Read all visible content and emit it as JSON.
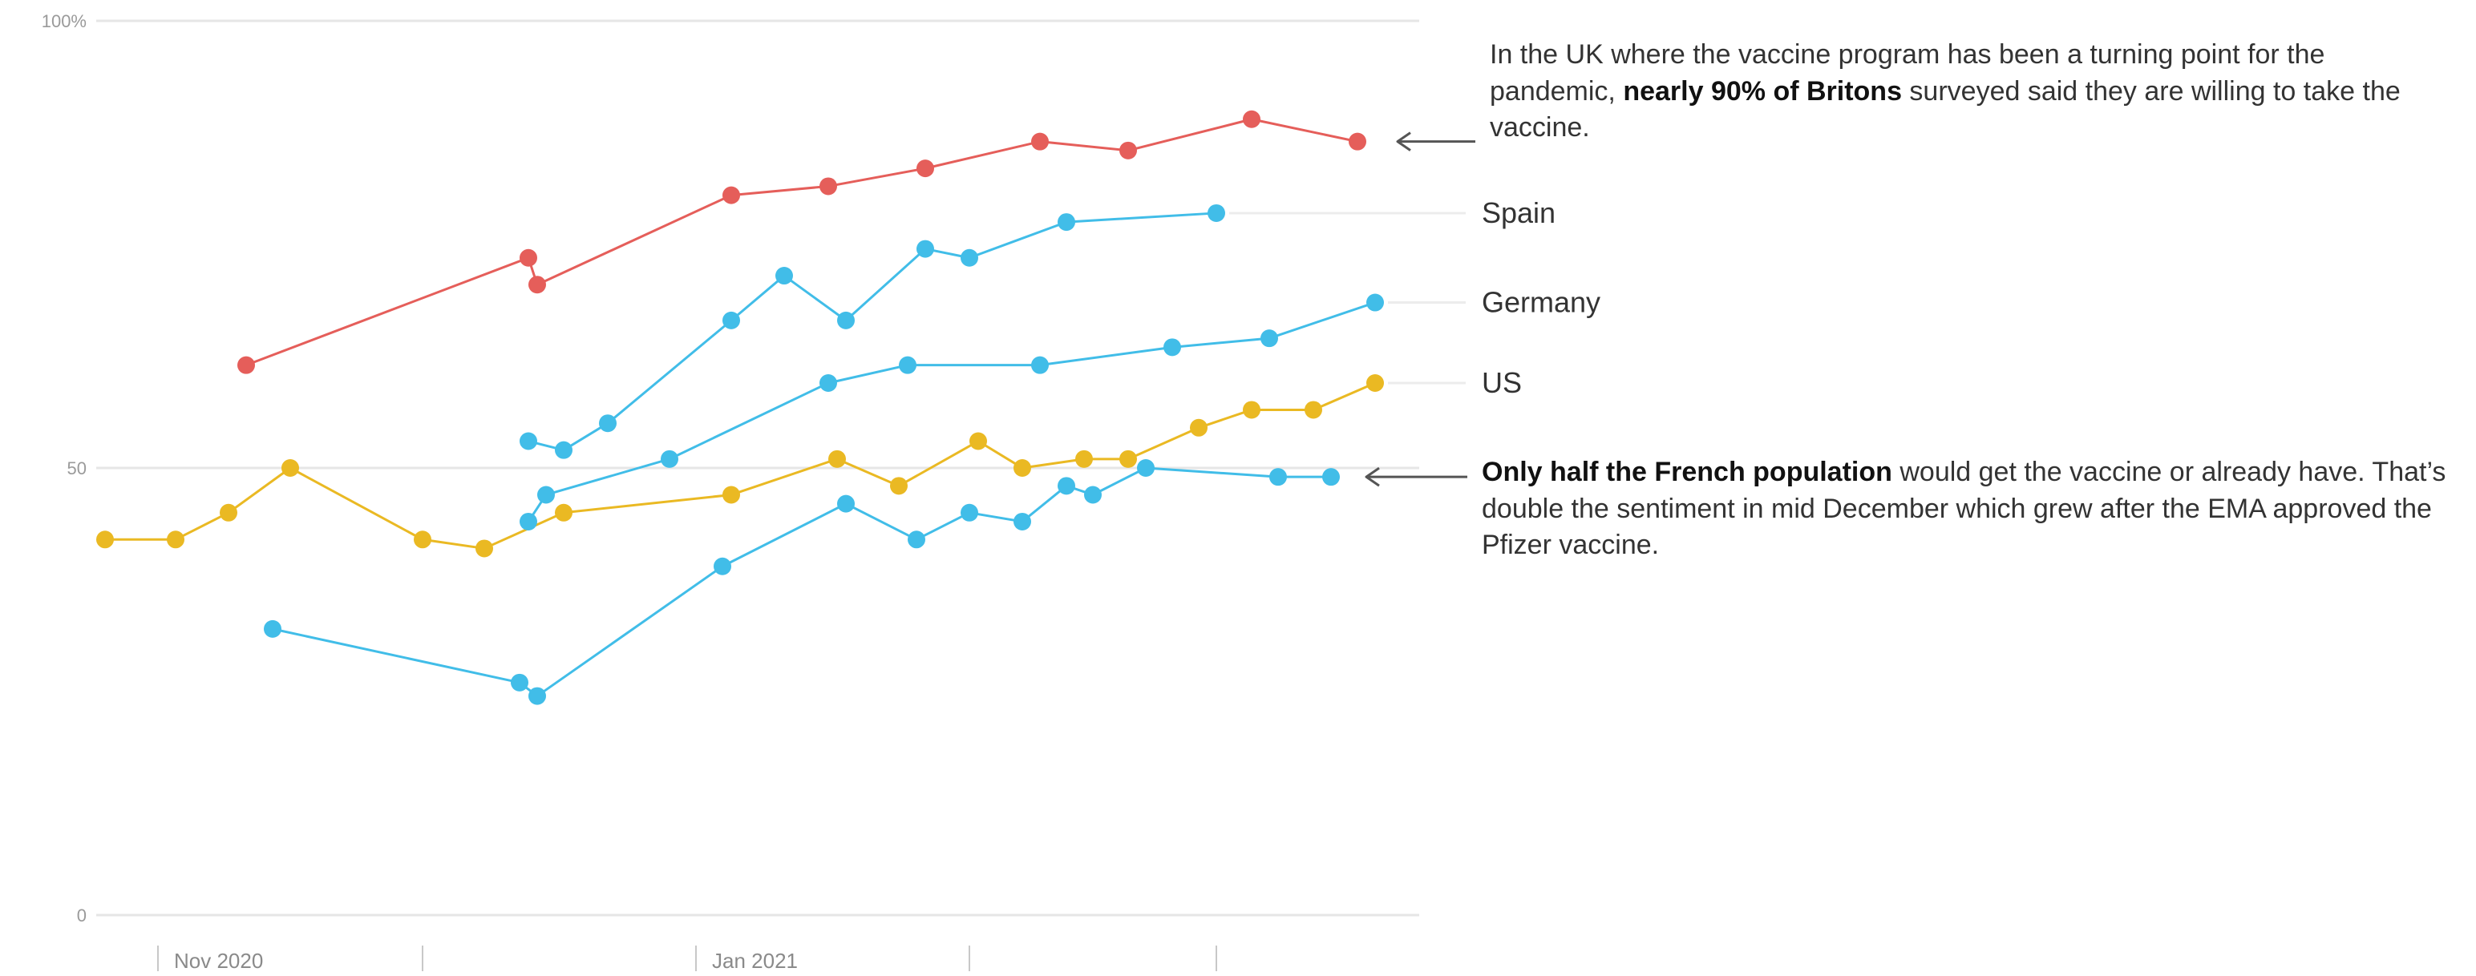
{
  "colors": {
    "uk": "#e55e5a",
    "spain": "#41bde8",
    "germany": "#41bde8",
    "france": "#41bde8",
    "us": "#eab923",
    "grid": "#e6e6e6",
    "axis_text": "#9a9a9a",
    "arrow": "#555555"
  },
  "annotations": {
    "uk": {
      "pre": "In the UK where the vaccine program has been a turning point for the pandemic, ",
      "bold": "nearly 90% of Britons",
      "post": " surveyed said they are willing to take the vaccine."
    },
    "france": {
      "bold": "Only half the French population",
      "post": " would get the vaccine or already have. That’s double the sentiment in mid December which grew after the EMA approved the Pfizer vaccine."
    }
  },
  "chart_data": {
    "type": "line",
    "title": "",
    "xlabel": "",
    "ylabel": "",
    "ylim": [
      0,
      100
    ],
    "y_ticks": [
      {
        "value": 100,
        "label": "100%"
      },
      {
        "value": 50,
        "label": "50"
      },
      {
        "value": 0,
        "label": "0"
      }
    ],
    "x_tick_labels": [
      {
        "date": "2020-11-01",
        "label": "Nov 2020"
      },
      {
        "date": "2021-01-01",
        "label": "Jan 2021"
      }
    ],
    "x_tick_dates": [
      "2020-11-01",
      "2020-12-01",
      "2021-01-01",
      "2021-02-01",
      "2021-03-01"
    ],
    "xlim": [
      "2020-10-25",
      "2021-03-24"
    ],
    "grid": true,
    "series": [
      {
        "key": "uk",
        "name": "",
        "dates": [
          "2020-11-11",
          "2020-12-13",
          "2020-12-14",
          "2021-01-05",
          "2021-01-16",
          "2021-01-27",
          "2021-02-09",
          "2021-02-19",
          "2021-03-05",
          "2021-03-17"
        ],
        "values": [
          61.5,
          73.5,
          70.5,
          80.5,
          81.5,
          83.5,
          86.5,
          85.5,
          89,
          86.5
        ]
      },
      {
        "key": "spain",
        "name": "Spain",
        "dates": [
          "2020-12-13",
          "2020-12-17",
          "2020-12-22",
          "2021-01-05",
          "2021-01-11",
          "2021-01-18",
          "2021-01-27",
          "2021-02-01",
          "2021-02-12",
          "2021-02-29x"
        ],
        "values": [
          53,
          52,
          55,
          66.5,
          71.5,
          66.5,
          74.5,
          73.5,
          77.5,
          78.5
        ]
      },
      {
        "key": "germany",
        "name": "Germany",
        "dates": [
          "2020-12-13",
          "2020-12-15",
          "2020-12-29",
          "2021-01-16",
          "2021-01-25",
          "2021-02-09",
          "2021-02-24",
          "2021-03-07",
          "2021-03-19"
        ],
        "values": [
          44,
          47,
          51,
          59.5,
          61.5,
          61.5,
          63.5,
          64.5,
          68.5
        ]
      },
      {
        "key": "us",
        "name": "US",
        "dates": [
          "2020-10-26",
          "2020-11-03",
          "2020-11-09",
          "2020-11-16",
          "2020-12-01",
          "2020-12-08",
          "2020-12-17",
          "2021-01-05",
          "2021-01-17",
          "2021-01-24",
          "2021-02-02",
          "2021-02-07",
          "2021-02-14",
          "2021-02-19",
          "2021-02-27",
          "2021-03-05",
          "2021-03-12",
          "2021-03-19"
        ],
        "values": [
          42,
          42,
          45,
          50,
          42,
          41,
          45,
          47,
          51,
          48,
          53,
          50,
          51,
          51,
          54.5,
          56.5,
          56.5,
          59.5
        ]
      },
      {
        "key": "france",
        "name": "",
        "dates": [
          "2020-11-14",
          "2020-12-12",
          "2020-12-14",
          "2021-01-04",
          "2021-01-18",
          "2021-01-26",
          "2021-02-01",
          "2021-02-07",
          "2021-02-12",
          "2021-02-15",
          "2021-02-21",
          "2021-03-08",
          "2021-03-14"
        ],
        "values": [
          32,
          26,
          24.5,
          39,
          46,
          42,
          45,
          44,
          48,
          47,
          50,
          49,
          49
        ]
      }
    ]
  }
}
